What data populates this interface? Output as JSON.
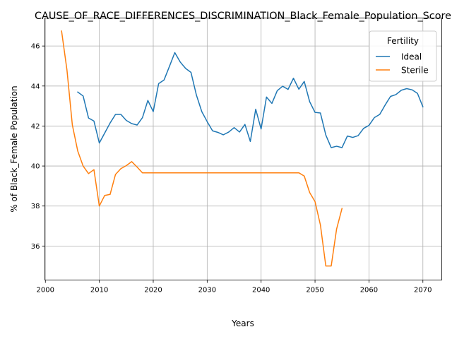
{
  "chart_data": {
    "type": "line",
    "title": "CAUSE_OF_RACE_DIFFERENCES_DISCRIMINATION_Black_Female_Population_Score",
    "xlabel": "Years",
    "ylabel": "% of Black_Female Population",
    "xlim": [
      1999.9,
      2073.5
    ],
    "ylim": [
      34.3,
      47.4
    ],
    "xticks": [
      2000,
      2010,
      2020,
      2030,
      2040,
      2050,
      2060,
      2070
    ],
    "yticks": [
      36,
      38,
      40,
      42,
      44,
      46
    ],
    "grid": true,
    "legend": {
      "title": "Fertility",
      "placement": "top-right"
    },
    "series": [
      {
        "name": "Ideal",
        "color": "#1f77b4",
        "x": [
          2006,
          2007,
          2008,
          2009,
          2010,
          2011,
          2012,
          2013,
          2014,
          2015,
          2016,
          2017,
          2018,
          2019,
          2020,
          2021,
          2022,
          2023,
          2024,
          2025,
          2026,
          2027,
          2028,
          2029,
          2030,
          2031,
          2032,
          2033,
          2034,
          2035,
          2036,
          2037,
          2038,
          2039,
          2040,
          2041,
          2042,
          2043,
          2044,
          2045,
          2046,
          2047,
          2048,
          2049,
          2050,
          2051,
          2052,
          2053,
          2054,
          2055,
          2056,
          2057,
          2058,
          2059,
          2060,
          2061,
          2062,
          2063,
          2064,
          2065,
          2066,
          2067,
          2068,
          2069,
          2070
        ],
        "y": [
          43.7,
          43.5,
          42.4,
          42.25,
          41.15,
          41.65,
          42.15,
          42.58,
          42.58,
          42.28,
          42.12,
          42.05,
          42.42,
          43.28,
          42.72,
          44.12,
          44.3,
          44.98,
          45.67,
          45.2,
          44.88,
          44.68,
          43.55,
          42.72,
          42.22,
          41.76,
          41.68,
          41.56,
          41.7,
          41.92,
          41.7,
          42.08,
          41.23,
          42.84,
          41.85,
          43.45,
          43.13,
          43.77,
          43.99,
          43.83,
          44.39,
          43.84,
          44.23,
          43.22,
          42.68,
          42.65,
          41.55,
          40.92,
          40.99,
          40.92,
          41.5,
          41.43,
          41.52,
          41.88,
          42.03,
          42.42,
          42.58,
          43.05,
          43.48,
          43.57,
          43.79,
          43.87,
          43.81,
          43.63,
          42.96
        ]
      },
      {
        "name": "Sterile",
        "color": "#ff7f0e",
        "x": [
          2003,
          2004,
          2005,
          2006,
          2007,
          2008,
          2009,
          2010,
          2011,
          2012,
          2013,
          2014,
          2015,
          2016,
          2017,
          2018,
          2019,
          2020,
          2021,
          2022,
          2023,
          2024,
          2025,
          2026,
          2027,
          2028,
          2029,
          2030,
          2031,
          2032,
          2033,
          2034,
          2035,
          2036,
          2037,
          2038,
          2039,
          2040,
          2041,
          2042,
          2043,
          2044,
          2045,
          2046,
          2047,
          2048,
          2049,
          2050,
          2051,
          2052,
          2053,
          2054,
          2055
        ],
        "y": [
          46.75,
          44.8,
          42.05,
          40.75,
          40.0,
          39.62,
          39.82,
          38.0,
          38.53,
          38.58,
          39.58,
          39.87,
          40.02,
          40.22,
          39.95,
          39.66,
          39.66,
          39.66,
          39.66,
          39.66,
          39.66,
          39.66,
          39.66,
          39.66,
          39.66,
          39.66,
          39.66,
          39.66,
          39.66,
          39.66,
          39.66,
          39.66,
          39.66,
          39.66,
          39.66,
          39.66,
          39.66,
          39.66,
          39.66,
          39.66,
          39.66,
          39.66,
          39.66,
          39.66,
          39.66,
          39.5,
          38.68,
          38.22,
          37.05,
          35.0,
          35.0,
          36.85,
          37.88
        ]
      }
    ]
  }
}
